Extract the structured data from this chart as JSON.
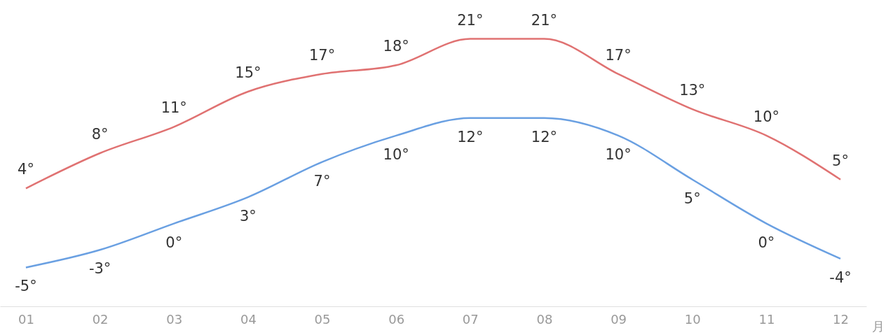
{
  "chart_data": {
    "type": "line",
    "xlabel": "月",
    "categories": [
      "01",
      "02",
      "03",
      "04",
      "05",
      "06",
      "07",
      "08",
      "09",
      "10",
      "11",
      "12"
    ],
    "series": [
      {
        "color": "#e07272",
        "values": [
          4,
          8,
          11,
          15,
          17,
          18,
          21,
          21,
          17,
          13,
          10,
          5
        ],
        "value_labels": [
          "4°",
          "8°",
          "11°",
          "15°",
          "17°",
          "18°",
          "21°",
          "21°",
          "17°",
          "13°",
          "10°",
          "5°"
        ]
      },
      {
        "color": "#6aa0e2",
        "values": [
          -5,
          -3,
          0,
          3,
          7,
          10,
          12,
          12,
          10,
          5,
          0,
          -4
        ],
        "value_labels": [
          "-5°",
          "-3°",
          "0°",
          "3°",
          "7°",
          "10°",
          "12°",
          "12°",
          "10°",
          "5°",
          "0°",
          "-4°"
        ]
      }
    ],
    "grid": false,
    "marker": "none",
    "line_style": "solid"
  }
}
